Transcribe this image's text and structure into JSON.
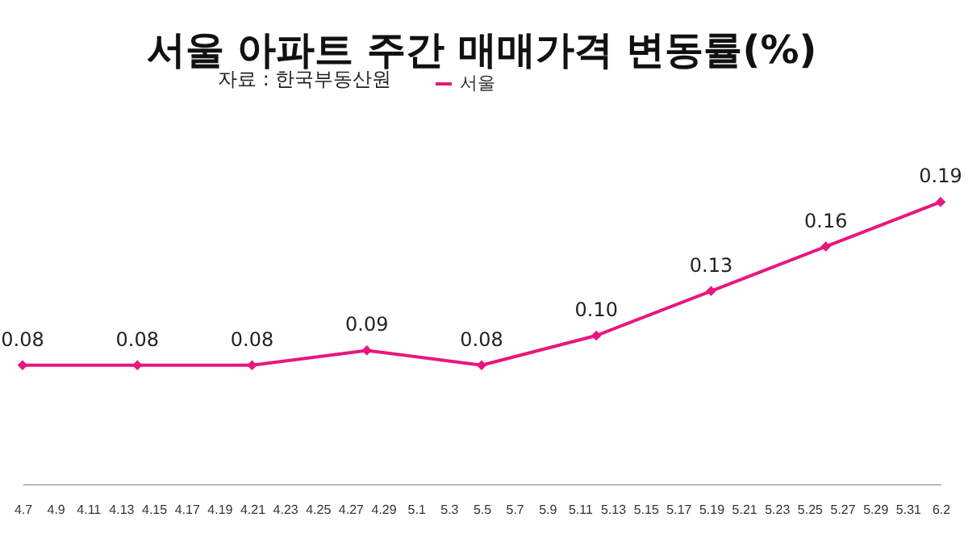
{
  "chart_data": {
    "type": "line",
    "title": "서울 아파트 주간 매매가격 변동률(%)",
    "annotations": [
      "자료 : 한국부동산원"
    ],
    "x": [
      "--04-07",
      "--04-14",
      "--04-21",
      "--04-28",
      "--05-05",
      "--05-12",
      "--05-19",
      "--05-26",
      "--06-02"
    ],
    "series": [
      {
        "name": "서울",
        "color": "#e8177d",
        "values": [
          0.08,
          0.08,
          0.08,
          0.09,
          0.08,
          0.1,
          0.13,
          0.16,
          0.19
        ],
        "value_labels": [
          "0.08",
          "0.08",
          "0.08",
          "0.09",
          "0.08",
          "0.10",
          "0.13",
          "0.16",
          "0.19"
        ]
      }
    ],
    "xlim": [
      "--04-07",
      "--06-02"
    ],
    "xticks": [
      {
        "value": "--04-07",
        "label": "4.7"
      },
      {
        "value": "--04-09",
        "label": "4.9"
      },
      {
        "value": "--04-11",
        "label": "4.11"
      },
      {
        "value": "--04-13",
        "label": "4.13"
      },
      {
        "value": "--04-15",
        "label": "4.15"
      },
      {
        "value": "--04-17",
        "label": "4.17"
      },
      {
        "value": "--04-19",
        "label": "4.19"
      },
      {
        "value": "--04-21",
        "label": "4.21"
      },
      {
        "value": "--04-23",
        "label": "4.23"
      },
      {
        "value": "--04-25",
        "label": "4.25"
      },
      {
        "value": "--04-27",
        "label": "4.27"
      },
      {
        "value": "--04-29",
        "label": "4.29"
      },
      {
        "value": "--05-01",
        "label": "5.1"
      },
      {
        "value": "--05-03",
        "label": "5.3"
      },
      {
        "value": "--05-05",
        "label": "5.5"
      },
      {
        "value": "--05-07",
        "label": "5.7"
      },
      {
        "value": "--05-09",
        "label": "5.9"
      },
      {
        "value": "--05-11",
        "label": "5.11"
      },
      {
        "value": "--05-13",
        "label": "5.13"
      },
      {
        "value": "--05-15",
        "label": "5.15"
      },
      {
        "value": "--05-17",
        "label": "5.17"
      },
      {
        "value": "--05-19",
        "label": "5.19"
      },
      {
        "value": "--05-21",
        "label": "5.21"
      },
      {
        "value": "--05-23",
        "label": "5.23"
      },
      {
        "value": "--05-25",
        "label": "5.25"
      },
      {
        "value": "--05-27",
        "label": "5.27"
      },
      {
        "value": "--05-29",
        "label": "5.29"
      },
      {
        "value": "--05-31",
        "label": "5.31"
      },
      {
        "value": "--06-02",
        "label": "6.2"
      }
    ],
    "legend": "top",
    "marker": "diamond",
    "grid": false,
    "line_style": "solid",
    "tick_labels": "x"
  }
}
